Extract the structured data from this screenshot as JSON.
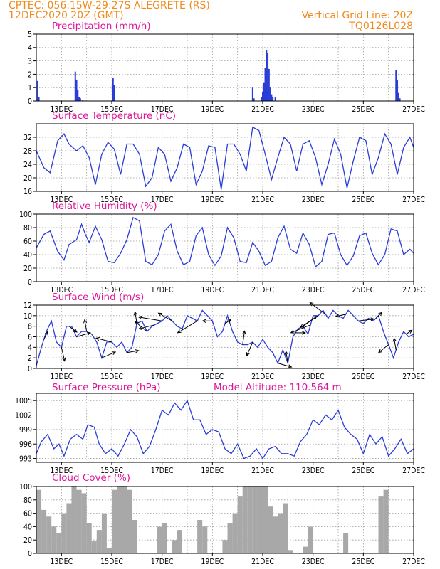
{
  "header": {
    "line1_left": "CPTEC:   056:15W-29:27S   ALEGRETE (RS)",
    "line2_left": "12DEC2020 20Z (GMT)",
    "line1_right": "Vertical Grid Line: 20Z",
    "line2_right": "TQ0126L028"
  },
  "colors": {
    "series": "#2a3cd8",
    "cloud": "#a8a8a8",
    "arrow": "#000000",
    "title": "#e0149a",
    "header": "#f08a1c"
  },
  "x_ticks": [
    "13DEC",
    "15DEC",
    "17DEC",
    "19DEC",
    "21DEC",
    "23DEC",
    "25DEC",
    "27DEC"
  ],
  "chart_data": [
    {
      "id": "precip",
      "type": "bar",
      "title": "Precipitation (mm/h)",
      "ylim": [
        0,
        5
      ],
      "yticks": [
        "0",
        "1",
        "2",
        "3",
        "4",
        "5"
      ],
      "x_unit": "day offset from 12DEC 20Z",
      "x": [
        0.05,
        0.1,
        1.55,
        1.6,
        1.65,
        1.7,
        1.75,
        1.85,
        3.05,
        3.1,
        8.6,
        8.65,
        8.95,
        9.0,
        9.05,
        9.1,
        9.15,
        9.2,
        9.25,
        9.3,
        9.35,
        9.4,
        9.5,
        14.3,
        14.35,
        14.4,
        14.45
      ],
      "values": [
        1.5,
        0.3,
        2.2,
        1.6,
        0.8,
        0.3,
        0.2,
        0.1,
        1.7,
        1.2,
        1.0,
        0.2,
        0.3,
        0.7,
        1.4,
        2.5,
        3.8,
        3.6,
        2.4,
        1.0,
        0.5,
        0.3,
        0.3,
        2.3,
        1.6,
        0.6,
        0.2
      ]
    },
    {
      "id": "temp",
      "type": "line",
      "title": "Surface Temperature (nC)",
      "ylim": [
        16,
        36
      ],
      "yticks": [
        "16",
        "20",
        "24",
        "28",
        "32"
      ],
      "x": [
        0.0,
        0.3,
        0.55,
        0.85,
        1.1,
        1.3,
        1.6,
        1.85,
        2.1,
        2.35,
        2.6,
        2.85,
        3.1,
        3.35,
        3.6,
        3.85,
        4.1,
        4.35,
        4.6,
        4.85,
        5.1,
        5.35,
        5.6,
        5.85,
        6.1,
        6.35,
        6.6,
        6.85,
        7.1,
        7.35,
        7.6,
        7.85,
        8.1,
        8.35,
        8.6,
        8.85,
        9.1,
        9.35,
        9.6,
        9.85,
        10.1,
        10.35,
        10.6,
        10.85,
        11.1,
        11.35,
        11.6,
        11.85,
        12.1,
        12.35,
        12.6,
        12.85,
        13.1,
        13.35,
        13.6,
        13.85,
        14.1,
        14.35,
        14.6,
        14.85,
        15.0
      ],
      "values": [
        28,
        23,
        21.5,
        31,
        33,
        30,
        28,
        29.5,
        26,
        18,
        27,
        30.5,
        28.5,
        21,
        30,
        30,
        27,
        17.5,
        20,
        29,
        27,
        19,
        23,
        30,
        29,
        18,
        22,
        29.5,
        29,
        16.5,
        30,
        30,
        27,
        22,
        35,
        34,
        27,
        19.5,
        26,
        32,
        30,
        22,
        30,
        31,
        26,
        18,
        24,
        31.5,
        27,
        17,
        25,
        32,
        31,
        21,
        26,
        33,
        30,
        21,
        29,
        32,
        29
      ]
    },
    {
      "id": "rh",
      "type": "line",
      "title": "Relative Humidity (%)",
      "ylim": [
        0,
        100
      ],
      "yticks": [
        "0",
        "20",
        "40",
        "60",
        "80",
        "100"
      ],
      "x": [
        0.0,
        0.3,
        0.55,
        0.85,
        1.1,
        1.3,
        1.6,
        1.8,
        1.95,
        2.1,
        2.35,
        2.6,
        2.85,
        3.1,
        3.35,
        3.6,
        3.85,
        4.1,
        4.35,
        4.6,
        4.85,
        5.1,
        5.35,
        5.6,
        5.85,
        6.1,
        6.35,
        6.6,
        6.85,
        7.1,
        7.35,
        7.6,
        7.85,
        8.1,
        8.35,
        8.6,
        8.85,
        9.1,
        9.35,
        9.6,
        9.85,
        10.1,
        10.35,
        10.6,
        10.85,
        11.1,
        11.35,
        11.6,
        11.85,
        12.1,
        12.35,
        12.6,
        12.85,
        13.1,
        13.35,
        13.6,
        13.85,
        14.1,
        14.35,
        14.6,
        14.85,
        15.0
      ],
      "values": [
        50,
        70,
        75,
        45,
        32,
        55,
        62,
        85,
        70,
        58,
        82,
        62,
        30,
        28,
        42,
        62,
        95,
        90,
        30,
        25,
        40,
        75,
        85,
        45,
        25,
        30,
        68,
        80,
        40,
        24,
        38,
        80,
        65,
        30,
        28,
        58,
        45,
        24,
        30,
        65,
        82,
        48,
        42,
        72,
        55,
        22,
        30,
        70,
        72,
        40,
        24,
        38,
        68,
        72,
        42,
        25,
        40,
        78,
        75,
        40,
        48,
        42
      ]
    },
    {
      "id": "wind",
      "type": "line",
      "title": "Surface Wind (m/s)",
      "ylim": [
        0,
        12
      ],
      "yticks": [
        "0",
        "2",
        "4",
        "6",
        "8",
        "10",
        "12"
      ],
      "x": [
        0.0,
        0.2,
        0.4,
        0.6,
        0.8,
        1.0,
        1.2,
        1.4,
        1.6,
        1.8,
        2.0,
        2.2,
        2.4,
        2.6,
        2.8,
        3.0,
        3.2,
        3.4,
        3.6,
        3.8,
        4.0,
        4.2,
        4.4,
        4.6,
        4.8,
        5.0,
        5.2,
        5.4,
        5.6,
        5.8,
        6.0,
        6.2,
        6.4,
        6.6,
        6.8,
        7.0,
        7.2,
        7.4,
        7.6,
        7.8,
        8.0,
        8.2,
        8.4,
        8.6,
        8.8,
        9.0,
        9.2,
        9.4,
        9.6,
        9.8,
        10.0,
        10.2,
        10.4,
        10.6,
        10.8,
        11.0,
        11.2,
        11.4,
        11.6,
        11.8,
        12.0,
        12.2,
        12.4,
        12.6,
        12.8,
        13.0,
        13.2,
        13.4,
        13.6,
        13.8,
        14.0,
        14.2,
        14.4,
        14.6,
        14.8,
        15.0
      ],
      "values": [
        0.5,
        4,
        7,
        9,
        5,
        4,
        8,
        8,
        6,
        7,
        7,
        6.5,
        5,
        2,
        5,
        5,
        4,
        5,
        3,
        4,
        8.5,
        9,
        7,
        8,
        8.5,
        9,
        10,
        9,
        8,
        7.5,
        10,
        9.5,
        9,
        11,
        10,
        9,
        6,
        7,
        10,
        7,
        5,
        4.5,
        4.5,
        5,
        4,
        5.5,
        4,
        3,
        1,
        3.5,
        1,
        6,
        7.5,
        8,
        6.5,
        10,
        10,
        11,
        9.5,
        11,
        10,
        9.5,
        11,
        10,
        9,
        8.5,
        9.5,
        9,
        10,
        7,
        4.5,
        2,
        5,
        7,
        6,
        6.5
      ],
      "arrows": [
        {
          "x": 0.3,
          "u": 1.0,
          "v": 2.0
        },
        {
          "x": 1.0,
          "u": 0.8,
          "v": -3.5
        },
        {
          "x": 1.3,
          "u": 2.0,
          "v": -1.5
        },
        {
          "x": 1.6,
          "u": 3.5,
          "v": 1.0
        },
        {
          "x": 2.0,
          "u": -0.5,
          "v": 3.0
        },
        {
          "x": 2.6,
          "u": 3.5,
          "v": 1.5
        },
        {
          "x": 3.0,
          "u": -4.0,
          "v": 1.0
        },
        {
          "x": 3.6,
          "u": 3.0,
          "v": 0.5
        },
        {
          "x": 4.0,
          "u": -0.5,
          "v": 3.0
        },
        {
          "x": 4.4,
          "u": -3.0,
          "v": 2.5
        },
        {
          "x": 4.7,
          "u": -4.0,
          "v": -1.0
        },
        {
          "x": 5.0,
          "u": -6.0,
          "v": 1.0
        },
        {
          "x": 5.4,
          "u": -3.5,
          "v": 2.0
        },
        {
          "x": 6.4,
          "u": -5.0,
          "v": -3.0
        },
        {
          "x": 7.0,
          "u": -2.5,
          "v": 0.0
        },
        {
          "x": 7.5,
          "u": 1.5,
          "v": 1.0
        },
        {
          "x": 8.2,
          "u": 0.5,
          "v": 3.5
        },
        {
          "x": 8.6,
          "u": -1.5,
          "v": -3.5
        },
        {
          "x": 9.6,
          "u": 3.5,
          "v": -1.0
        },
        {
          "x": 10.0,
          "u": -0.5,
          "v": 3.0
        },
        {
          "x": 10.3,
          "u": 2.5,
          "v": 0.0
        },
        {
          "x": 10.6,
          "u": 3.5,
          "v": 2.5
        },
        {
          "x": 10.9,
          "u": -5.0,
          "v": -2.0
        },
        {
          "x": 11.2,
          "u": -4.5,
          "v": -3.0
        },
        {
          "x": 11.5,
          "u": -4.0,
          "v": 3.0
        },
        {
          "x": 12.3,
          "u": -2.5,
          "v": -0.5
        },
        {
          "x": 12.8,
          "u": 4.0,
          "v": 0.5
        },
        {
          "x": 13.5,
          "u": 1.5,
          "v": 1.5
        },
        {
          "x": 14.0,
          "u": -2.5,
          "v": -2.0
        },
        {
          "x": 14.3,
          "u": -0.5,
          "v": 3.0
        },
        {
          "x": 14.7,
          "u": 1.5,
          "v": 1.0
        }
      ]
    },
    {
      "id": "pressure",
      "type": "line",
      "title": "Surface Pressure (hPa)",
      "annotation": "Model Altitude: 110.564 m",
      "ylim": [
        992.2,
        1006.5
      ],
      "yticks": [
        "993",
        "996",
        "999",
        "1002",
        "1005"
      ],
      "x": [
        0.0,
        0.2,
        0.45,
        0.7,
        0.9,
        1.1,
        1.35,
        1.6,
        1.85,
        2.05,
        2.3,
        2.5,
        2.75,
        3.0,
        3.25,
        3.5,
        3.75,
        4.0,
        4.25,
        4.5,
        4.75,
        5.0,
        5.25,
        5.5,
        5.75,
        6.0,
        6.25,
        6.5,
        6.75,
        7.0,
        7.25,
        7.5,
        7.75,
        8.0,
        8.25,
        8.5,
        8.75,
        9.0,
        9.25,
        9.5,
        9.75,
        10.0,
        10.25,
        10.5,
        10.75,
        11.0,
        11.25,
        11.5,
        11.75,
        12.0,
        12.25,
        12.5,
        12.75,
        13.0,
        13.25,
        13.5,
        13.75,
        14.0,
        14.25,
        14.5,
        14.75,
        15.0
      ],
      "values": [
        994,
        996.5,
        998,
        995,
        996,
        993.5,
        997,
        998,
        997,
        1000,
        999.5,
        996,
        994,
        995,
        993.5,
        996,
        999,
        997.5,
        994,
        995.5,
        999,
        1003,
        1002,
        1004.5,
        1003,
        1005,
        1001,
        1001,
        998,
        999,
        998.5,
        995,
        994,
        996,
        993,
        993.5,
        995,
        993,
        995,
        995.5,
        994,
        994,
        993.5,
        996.5,
        998,
        1001,
        1000,
        1002,
        1001,
        1003,
        999.5,
        998,
        997,
        994,
        998,
        996,
        997.5,
        993.5,
        995,
        997,
        994,
        995
      ]
    },
    {
      "id": "cloud",
      "type": "bar",
      "title": "Cloud Cover (%)",
      "ylim": [
        0,
        100
      ],
      "yticks": [
        "0",
        "20",
        "40",
        "60",
        "80",
        "100"
      ],
      "x": [
        0.1,
        0.3,
        0.5,
        0.7,
        0.9,
        1.1,
        1.3,
        1.5,
        1.7,
        1.9,
        2.1,
        2.3,
        2.5,
        2.7,
        2.9,
        3.1,
        3.3,
        3.5,
        3.7,
        3.9,
        4.1,
        4.3,
        4.5,
        4.7,
        4.9,
        5.1,
        5.3,
        5.5,
        5.7,
        5.9,
        6.1,
        6.3,
        6.5,
        6.7,
        6.9,
        7.1,
        7.3,
        7.5,
        7.7,
        7.9,
        8.1,
        8.3,
        8.5,
        8.7,
        8.9,
        9.1,
        9.3,
        9.5,
        9.7,
        9.9,
        10.1,
        10.3,
        10.5,
        10.7,
        10.9,
        11.1,
        11.3,
        11.5,
        11.7,
        11.9,
        12.1,
        12.3,
        12.5,
        12.7,
        12.9,
        13.1,
        13.3,
        13.5,
        13.7,
        13.9,
        14.1,
        14.3,
        14.5,
        14.7,
        14.9
      ],
      "values": [
        95,
        65,
        55,
        40,
        30,
        60,
        75,
        100,
        95,
        90,
        45,
        18,
        35,
        60,
        8,
        95,
        100,
        100,
        95,
        50,
        0,
        0,
        0,
        0,
        40,
        45,
        0,
        20,
        35,
        0,
        0,
        0,
        50,
        40,
        0,
        0,
        0,
        20,
        45,
        60,
        85,
        100,
        100,
        100,
        100,
        100,
        70,
        55,
        60,
        75,
        5,
        0,
        0,
        10,
        40,
        0,
        0,
        0,
        0,
        0,
        0,
        30,
        0,
        0,
        0,
        0,
        0,
        0,
        85,
        95,
        0,
        0,
        0,
        0,
        0
      ]
    }
  ]
}
